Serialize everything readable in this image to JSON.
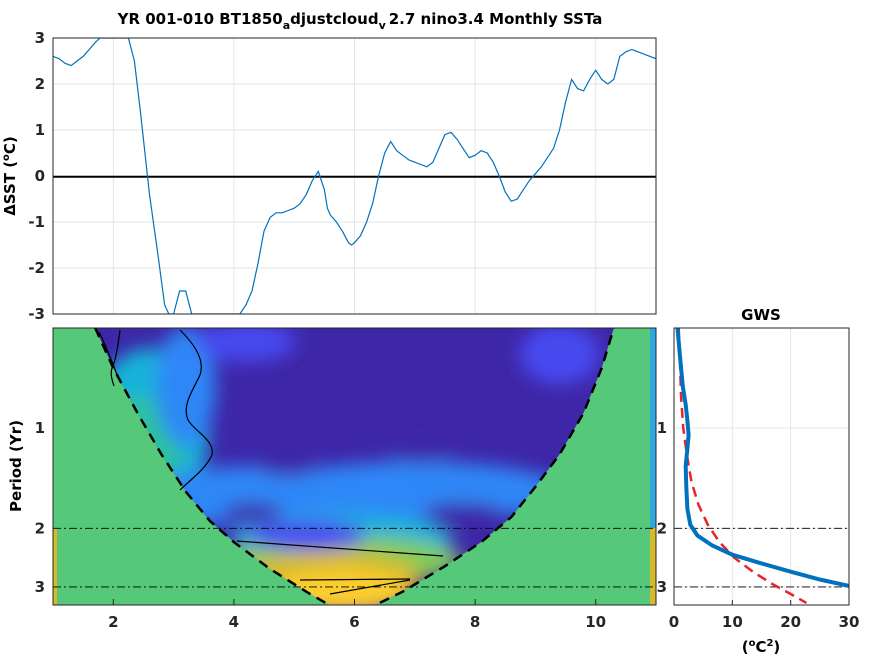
{
  "title": {
    "prefix": "YR 001-010 BT1850",
    "sub1": "a",
    "mid": "djustcloud",
    "sub2": "v",
    "suffix": "2.7 nino3.4 Monthly SSTa"
  },
  "chart_data": [
    {
      "type": "line",
      "panel": "timeseries",
      "ylabel_delta": "Δ",
      "ylabel_text": "SST (",
      "ylabel_sup": "o",
      "ylabel_unit": "C)",
      "xlim": [
        1,
        11
      ],
      "ylim": [
        -3,
        3
      ],
      "yticks": [
        -3,
        -2,
        -1,
        0,
        1,
        2,
        3
      ],
      "grid": true,
      "zero_line": true,
      "x": [
        1.0,
        1.1,
        1.2,
        1.3,
        1.4,
        1.5,
        1.6,
        1.7,
        1.78,
        2.25,
        2.35,
        2.45,
        2.6,
        2.75,
        2.85,
        2.92,
        3.0,
        3.1,
        3.2,
        3.3,
        4.1,
        4.2,
        4.3,
        4.4,
        4.5,
        4.6,
        4.7,
        4.8,
        4.9,
        5.0,
        5.1,
        5.2,
        5.3,
        5.4,
        5.5,
        5.55,
        5.6,
        5.7,
        5.8,
        5.9,
        5.95,
        6.0,
        6.1,
        6.2,
        6.3,
        6.4,
        6.5,
        6.6,
        6.7,
        6.8,
        6.9,
        7.0,
        7.1,
        7.2,
        7.3,
        7.4,
        7.5,
        7.6,
        7.7,
        7.8,
        7.9,
        8.0,
        8.1,
        8.2,
        8.3,
        8.4,
        8.5,
        8.6,
        8.7,
        8.8,
        8.9,
        9.0,
        9.1,
        9.2,
        9.3,
        9.4,
        9.5,
        9.6,
        9.7,
        9.8,
        9.9,
        10.0,
        10.1,
        10.2,
        10.3,
        10.4,
        10.5,
        10.6,
        10.7,
        10.8,
        10.9,
        11.0
      ],
      "y": [
        2.6,
        2.55,
        2.45,
        2.4,
        2.5,
        2.6,
        2.75,
        2.9,
        3.0,
        3.0,
        2.5,
        1.4,
        -0.4,
        -1.8,
        -2.8,
        -3.0,
        -3.0,
        -2.5,
        -2.5,
        -3.0,
        -3.0,
        -2.8,
        -2.5,
        -1.9,
        -1.2,
        -0.9,
        -0.8,
        -0.8,
        -0.75,
        -0.7,
        -0.6,
        -0.4,
        -0.1,
        0.1,
        -0.3,
        -0.7,
        -0.85,
        -1.0,
        -1.2,
        -1.45,
        -1.5,
        -1.45,
        -1.3,
        -1.0,
        -0.6,
        0.0,
        0.5,
        0.75,
        0.55,
        0.45,
        0.35,
        0.3,
        0.25,
        0.2,
        0.3,
        0.6,
        0.9,
        0.95,
        0.8,
        0.6,
        0.4,
        0.45,
        0.55,
        0.5,
        0.3,
        0.0,
        -0.35,
        -0.55,
        -0.5,
        -0.3,
        -0.1,
        0.05,
        0.2,
        0.4,
        0.6,
        1.0,
        1.6,
        2.1,
        1.9,
        1.85,
        2.1,
        2.3,
        2.1,
        2.0,
        2.1,
        2.6,
        2.7,
        2.75,
        2.7,
        2.65,
        2.6,
        2.55
      ],
      "color": "#0072BD"
    },
    {
      "type": "heatmap",
      "panel": "wavelet",
      "ylabel": "Period (Yr)",
      "xticks": [
        2,
        4,
        6,
        8,
        10
      ],
      "yticks": [
        1,
        2,
        3
      ],
      "xlim": [
        1,
        11
      ],
      "period_range": [
        0.5,
        3.4
      ],
      "cone_color": "#56c87a",
      "reference_periods": [
        2,
        3
      ],
      "colors": [
        "#3e26a8",
        "#4748f0",
        "#2e87f7",
        "#17b2d9",
        "#2ec09f",
        "#81cc59",
        "#d7ba2b",
        "#fcce2e",
        "#f9fb15"
      ]
    },
    {
      "type": "line",
      "panel": "gws",
      "title": "GWS",
      "xlabel_text": "(",
      "xlabel_sup_o": "o",
      "xlabel_unit": "C",
      "xlabel_sup_2": "2",
      "xlabel_close": ")",
      "xticks": [
        0,
        10,
        20,
        30
      ],
      "xlim": [
        0,
        30
      ],
      "yticks": [
        1,
        2,
        3
      ],
      "period_range": [
        0.5,
        3.4
      ],
      "series": [
        {
          "color": "#0072BD",
          "x": [
            0.6,
            1.0,
            1.5,
            2.0,
            2.3,
            2.5,
            2.3,
            2.0,
            2.1,
            2.3,
            2.8,
            4.0,
            6.5,
            10.0,
            15.0,
            20.0,
            25.0,
            30.0
          ],
          "y": [
            0.5,
            0.6,
            0.75,
            0.85,
            0.95,
            1.05,
            1.15,
            1.3,
            1.5,
            1.75,
            1.95,
            2.1,
            2.25,
            2.4,
            2.55,
            2.7,
            2.85,
            2.98
          ]
        },
        {
          "color": "#e8232b",
          "style": "dashed",
          "x": [
            0.8,
            1.0,
            1.2,
            1.6,
            2.2,
            3.0,
            4.2,
            5.8,
            7.8,
            10.3,
            13.5,
            17.0,
            20.0,
            22.7
          ],
          "y": [
            0.5,
            0.6,
            0.8,
            1.0,
            1.2,
            1.45,
            1.7,
            1.95,
            2.2,
            2.45,
            2.7,
            2.95,
            3.15,
            3.35
          ]
        }
      ]
    }
  ]
}
